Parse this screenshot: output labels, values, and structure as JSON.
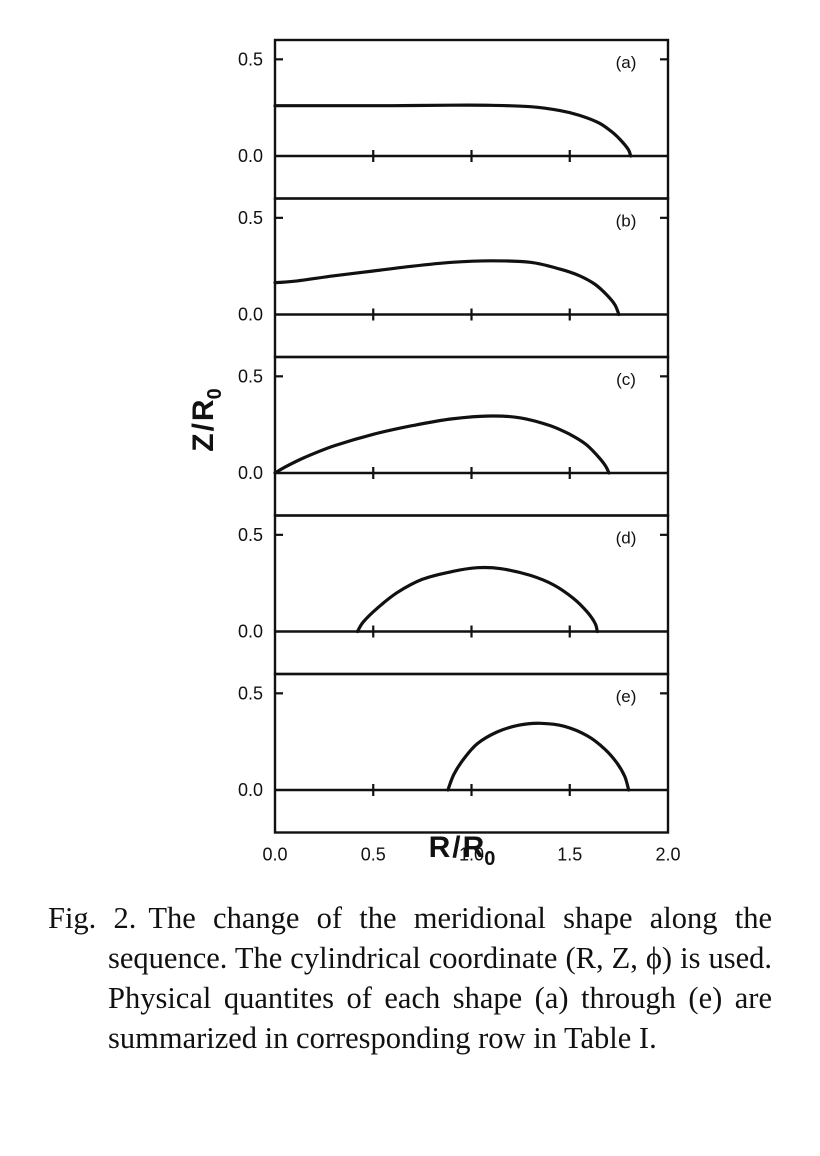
{
  "chart_data": {
    "type": "line",
    "figure": "stacked panels sharing one x axis",
    "xlabel": "R / R_0",
    "ylabel": "Z / R_0",
    "xlim": [
      0.0,
      2.0
    ],
    "ylim": [
      0.0,
      0.6
    ],
    "x_ticks": [
      "0.0",
      "0.5",
      "1.0",
      "1.5",
      "2.0"
    ],
    "y_ticks": [
      "0.0",
      "0.5"
    ],
    "grid": false,
    "panels": [
      {
        "label": "(a)",
        "points": [
          [
            0.0,
            0.26
          ],
          [
            0.3,
            0.26
          ],
          [
            0.6,
            0.26
          ],
          [
            0.9,
            0.263
          ],
          [
            1.1,
            0.262
          ],
          [
            1.3,
            0.255
          ],
          [
            1.45,
            0.235
          ],
          [
            1.55,
            0.21
          ],
          [
            1.65,
            0.17
          ],
          [
            1.72,
            0.12
          ],
          [
            1.77,
            0.07
          ],
          [
            1.8,
            0.03
          ],
          [
            1.81,
            0.0
          ]
        ]
      },
      {
        "label": "(b)",
        "points": [
          [
            0.0,
            0.165
          ],
          [
            0.1,
            0.172
          ],
          [
            0.3,
            0.2
          ],
          [
            0.5,
            0.225
          ],
          [
            0.7,
            0.25
          ],
          [
            0.9,
            0.27
          ],
          [
            1.1,
            0.278
          ],
          [
            1.3,
            0.27
          ],
          [
            1.45,
            0.235
          ],
          [
            1.55,
            0.2
          ],
          [
            1.63,
            0.155
          ],
          [
            1.69,
            0.1
          ],
          [
            1.73,
            0.05
          ],
          [
            1.75,
            0.0
          ]
        ]
      },
      {
        "label": "(c)",
        "points": [
          [
            0.0,
            0.0
          ],
          [
            0.05,
            0.03
          ],
          [
            0.15,
            0.08
          ],
          [
            0.3,
            0.14
          ],
          [
            0.5,
            0.2
          ],
          [
            0.7,
            0.245
          ],
          [
            0.9,
            0.28
          ],
          [
            1.1,
            0.295
          ],
          [
            1.25,
            0.285
          ],
          [
            1.4,
            0.245
          ],
          [
            1.5,
            0.2
          ],
          [
            1.58,
            0.15
          ],
          [
            1.64,
            0.09
          ],
          [
            1.68,
            0.04
          ],
          [
            1.7,
            0.0
          ]
        ]
      },
      {
        "label": "(d)",
        "points": [
          [
            0.42,
            0.0
          ],
          [
            0.45,
            0.05
          ],
          [
            0.52,
            0.12
          ],
          [
            0.62,
            0.2
          ],
          [
            0.75,
            0.27
          ],
          [
            0.9,
            0.31
          ],
          [
            1.03,
            0.33
          ],
          [
            1.15,
            0.325
          ],
          [
            1.3,
            0.29
          ],
          [
            1.42,
            0.24
          ],
          [
            1.52,
            0.17
          ],
          [
            1.59,
            0.1
          ],
          [
            1.63,
            0.04
          ],
          [
            1.64,
            0.0
          ]
        ]
      },
      {
        "label": "(e)",
        "points": [
          [
            0.88,
            0.0
          ],
          [
            0.91,
            0.08
          ],
          [
            0.96,
            0.16
          ],
          [
            1.03,
            0.24
          ],
          [
            1.13,
            0.3
          ],
          [
            1.24,
            0.335
          ],
          [
            1.35,
            0.345
          ],
          [
            1.47,
            0.33
          ],
          [
            1.59,
            0.28
          ],
          [
            1.68,
            0.21
          ],
          [
            1.74,
            0.14
          ],
          [
            1.78,
            0.07
          ],
          [
            1.8,
            0.0
          ]
        ]
      }
    ]
  },
  "axes_text": {
    "xlabel_main": "R",
    "xlabel_slash": "/",
    "xlabel_sub": "R",
    "xlabel_index": "0",
    "ylabel_main": "Z",
    "ylabel_slash": "/",
    "ylabel_sub": "R",
    "ylabel_index": "0"
  },
  "caption": {
    "label": "Fig. 2.",
    "text": "The change of the meridional shape along the sequence. The cylindrical coordinate (R, Z, ϕ) is used. Physical quantites of each shape (a) through (e) are summarized in corresponding row in Table I."
  }
}
